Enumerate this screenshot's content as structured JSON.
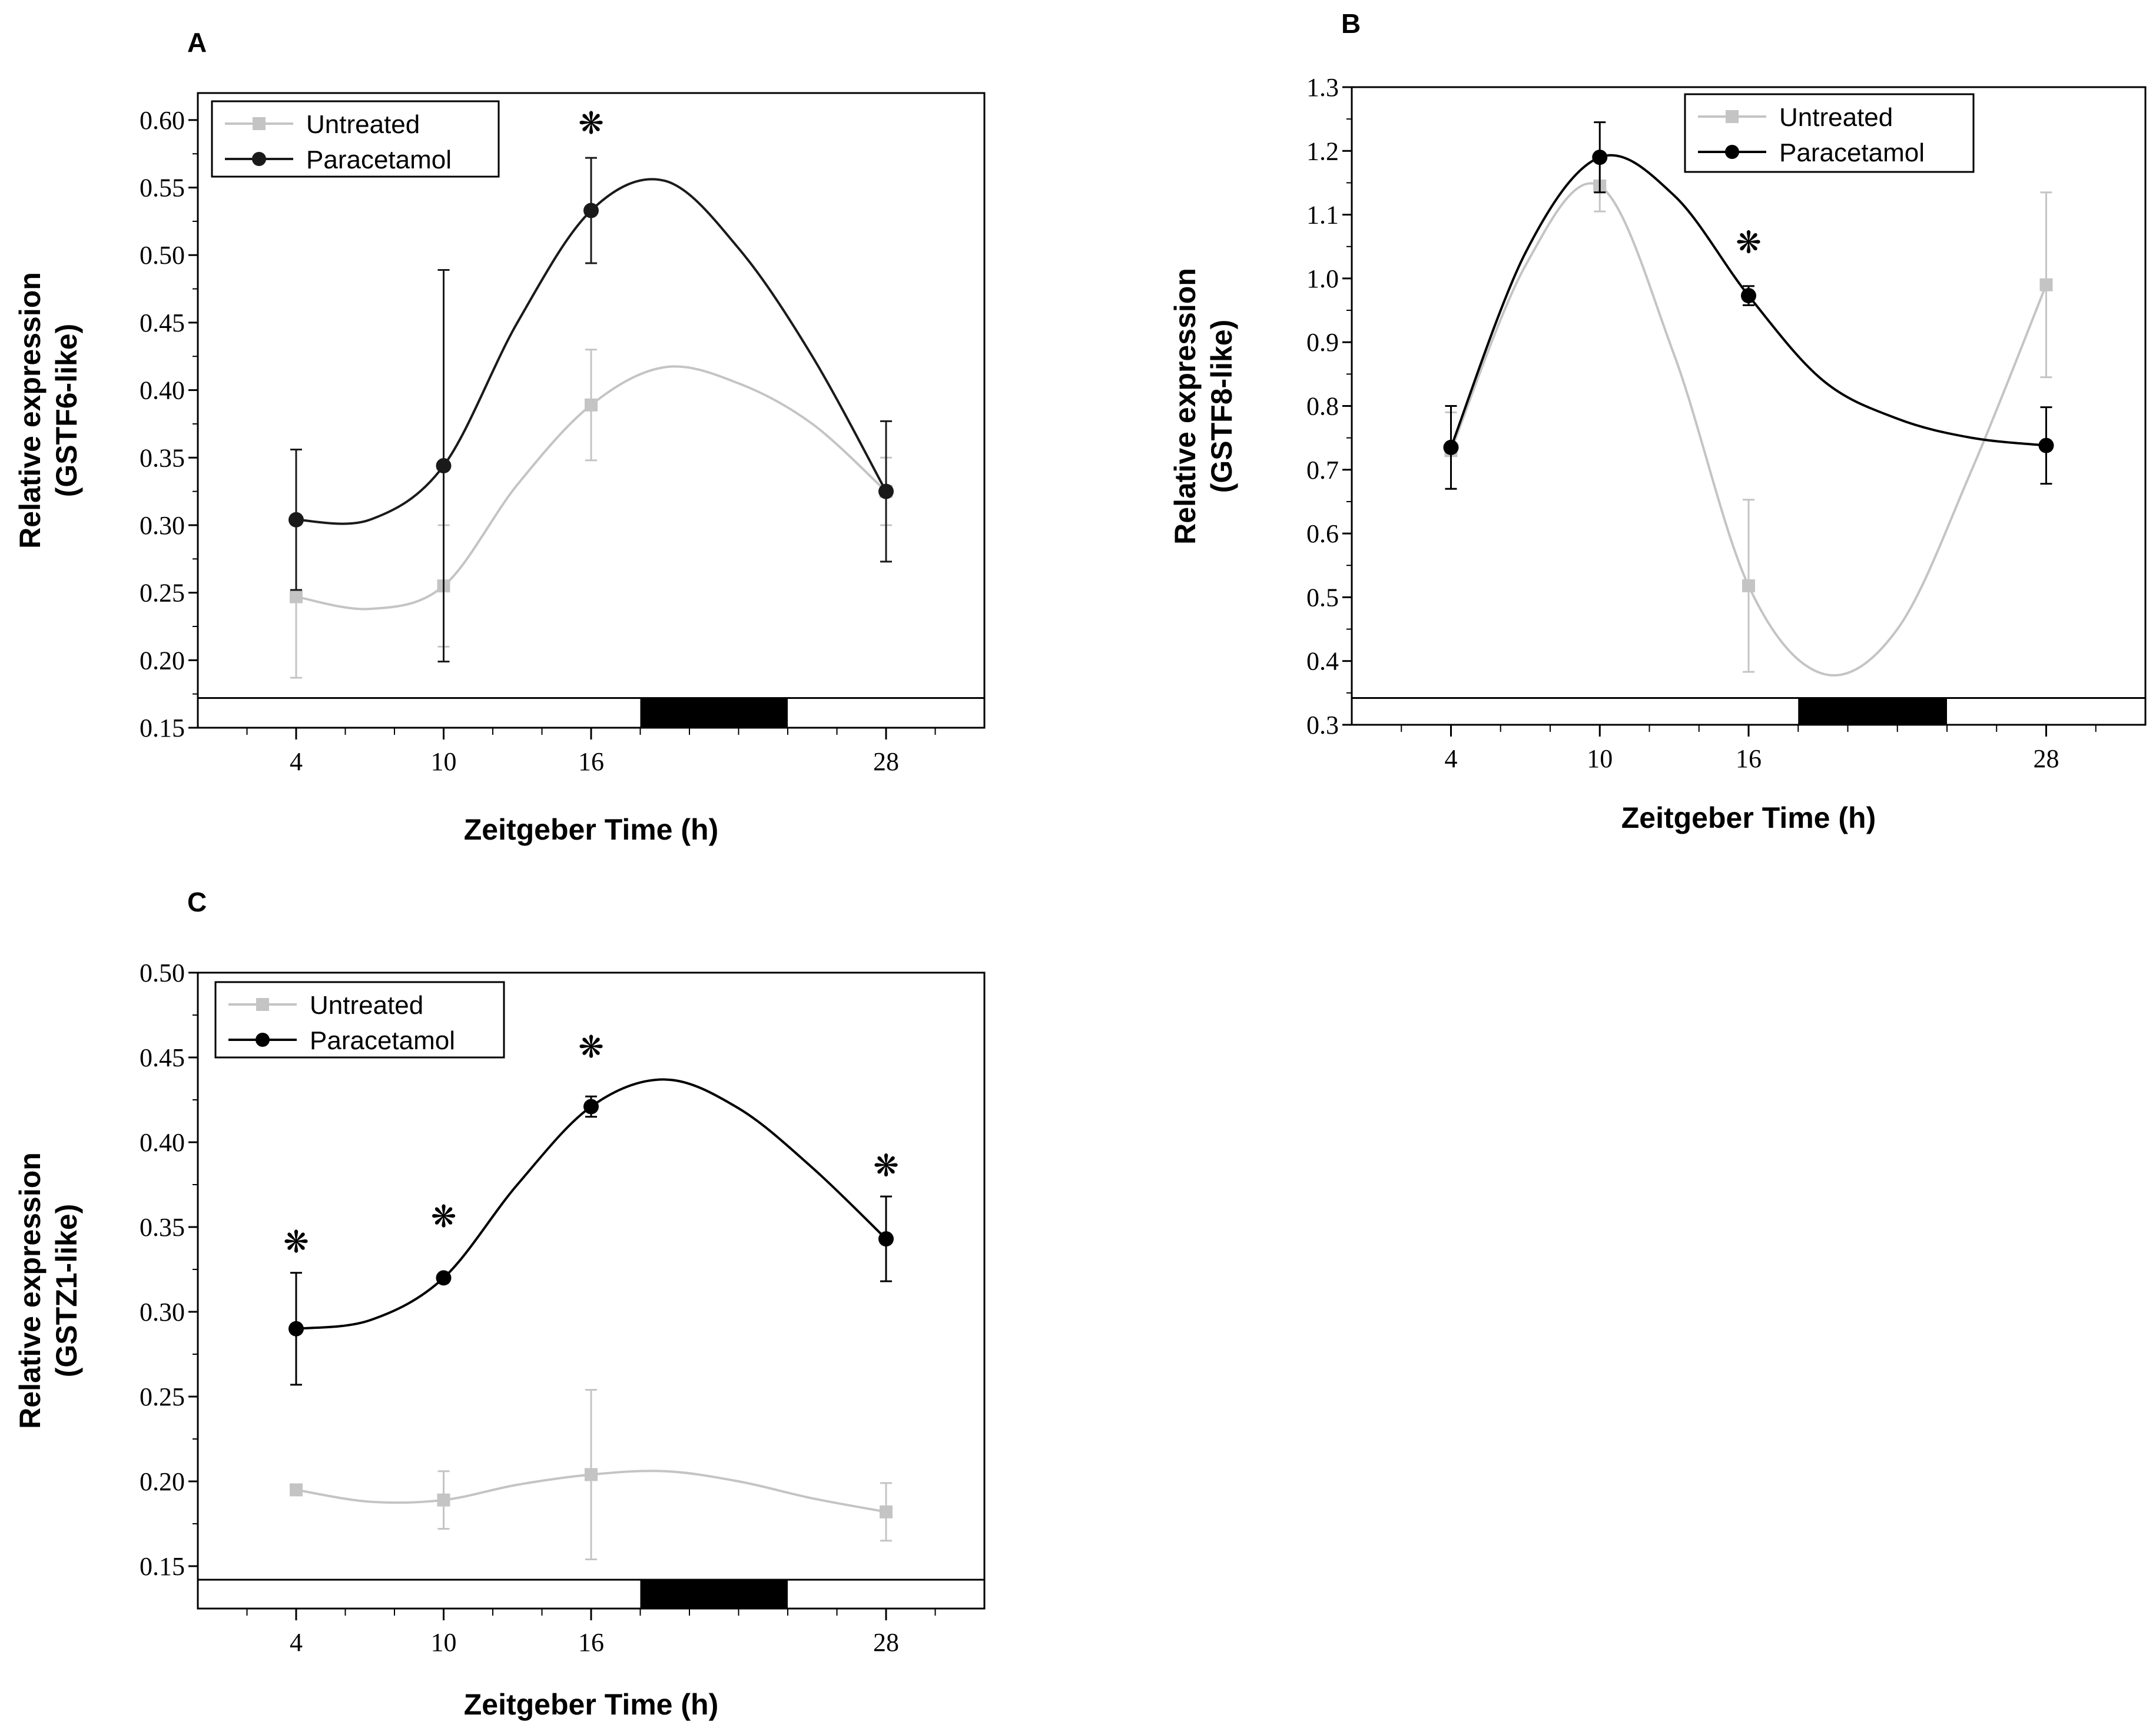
{
  "chart_data": [
    {
      "id": "A",
      "panel_label": "A",
      "type": "line",
      "xlabel": "Zeitgeber Time (h)",
      "ylabel_line1": "Relative expression",
      "ylabel_line2": "(GSTF6-like)",
      "xlim": [
        0,
        32
      ],
      "ylim": [
        0.15,
        0.62
      ],
      "xticks": [
        4,
        10,
        16,
        28
      ],
      "xticks_minor": [
        2,
        4,
        6,
        8,
        10,
        12,
        14,
        16,
        18,
        20,
        22,
        24,
        26,
        28,
        30
      ],
      "yticks": [
        0.15,
        0.2,
        0.25,
        0.3,
        0.35,
        0.4,
        0.45,
        0.5,
        0.55,
        0.6
      ],
      "ytick_labels": [
        "0.15",
        "0.20",
        "0.25",
        "0.30",
        "0.35",
        "0.40",
        "0.45",
        "0.50",
        "0.55",
        "0.60"
      ],
      "light_dark_bar": {
        "dark_start": 18,
        "dark_end": 24,
        "ylow": 0.15,
        "yhigh": 0.172
      },
      "series": [
        {
          "name": "Untreated",
          "color": "#c4c4c4",
          "marker": "square",
          "x": [
            4,
            10,
            16,
            28
          ],
          "y": [
            0.247,
            0.255,
            0.389,
            0.325
          ],
          "err": [
            0.06,
            0.045,
            0.041,
            0.025
          ],
          "curve": [
            [
              4,
              0.247
            ],
            [
              7,
              0.238
            ],
            [
              10,
              0.255
            ],
            [
              13,
              0.33
            ],
            [
              16,
              0.389
            ],
            [
              19,
              0.417
            ],
            [
              22,
              0.405
            ],
            [
              25,
              0.375
            ],
            [
              28,
              0.325
            ]
          ]
        },
        {
          "name": "Paracetamol",
          "color": "#1a1a1a",
          "marker": "circle",
          "x": [
            4,
            10,
            16,
            28
          ],
          "y": [
            0.304,
            0.344,
            0.533,
            0.325
          ],
          "err": [
            0.052,
            0.145,
            0.039,
            0.052
          ],
          "curve": [
            [
              4,
              0.304
            ],
            [
              7,
              0.304
            ],
            [
              10,
              0.344
            ],
            [
              13,
              0.45
            ],
            [
              16,
              0.533
            ],
            [
              19,
              0.555
            ],
            [
              22,
              0.505
            ],
            [
              25,
              0.425
            ],
            [
              28,
              0.325
            ]
          ]
        }
      ],
      "significance": [
        {
          "x": 16,
          "label": "❋",
          "y": 0.59
        }
      ],
      "legend": {
        "position": "top-left",
        "entries": [
          "Untreated",
          "Paracetamol"
        ]
      }
    },
    {
      "id": "B",
      "panel_label": "B",
      "type": "line",
      "xlabel": "Zeitgeber Time (h)",
      "ylabel_line1": "Relative expression",
      "ylabel_line2": "(GSTF8-like)",
      "xlim": [
        0,
        32
      ],
      "ylim": [
        0.3,
        1.3
      ],
      "xticks": [
        4,
        10,
        16,
        28
      ],
      "xticks_minor": [
        2,
        4,
        6,
        8,
        10,
        12,
        14,
        16,
        18,
        20,
        22,
        24,
        26,
        28,
        30
      ],
      "yticks": [
        0.3,
        0.4,
        0.5,
        0.6,
        0.7,
        0.8,
        0.9,
        1.0,
        1.1,
        1.2,
        1.3
      ],
      "ytick_labels": [
        "0.3",
        "0.4",
        "0.5",
        "0.6",
        "0.7",
        "0.8",
        "0.9",
        "1.0",
        "1.1",
        "1.2",
        "1.3"
      ],
      "light_dark_bar": {
        "dark_start": 18,
        "dark_end": 24,
        "ylow": 0.3,
        "yhigh": 0.342
      },
      "series": [
        {
          "name": "Untreated",
          "color": "#c4c4c4",
          "marker": "square",
          "x": [
            4,
            10,
            16,
            28
          ],
          "y": [
            0.73,
            1.145,
            0.518,
            0.99
          ],
          "err": [
            0.06,
            0.04,
            0.135,
            0.145
          ],
          "curve": [
            [
              4,
              0.73
            ],
            [
              7,
              1.02
            ],
            [
              10,
              1.145
            ],
            [
              13,
              0.88
            ],
            [
              16,
              0.518
            ],
            [
              19,
              0.38
            ],
            [
              22,
              0.45
            ],
            [
              25,
              0.7
            ],
            [
              28,
              0.99
            ]
          ]
        },
        {
          "name": "Paracetamol",
          "color": "#000000",
          "marker": "circle",
          "x": [
            4,
            10,
            16,
            28
          ],
          "y": [
            0.735,
            1.19,
            0.973,
            0.738
          ],
          "err": [
            0.065,
            0.055,
            0.015,
            0.06
          ],
          "curve": [
            [
              4,
              0.735
            ],
            [
              7,
              1.04
            ],
            [
              10,
              1.19
            ],
            [
              13,
              1.13
            ],
            [
              16,
              0.973
            ],
            [
              19,
              0.84
            ],
            [
              22,
              0.78
            ],
            [
              25,
              0.75
            ],
            [
              28,
              0.738
            ]
          ]
        }
      ],
      "significance": [
        {
          "x": 16,
          "label": "❋",
          "y": 1.04
        }
      ],
      "legend": {
        "position": "top-right",
        "entries": [
          "Untreated",
          "Paracetamol"
        ]
      }
    },
    {
      "id": "C",
      "panel_label": "C",
      "type": "line",
      "xlabel": "Zeitgeber Time (h)",
      "ylabel_line1": "Relative expression",
      "ylabel_line2": "(GSTZ1-like)",
      "xlim": [
        0,
        32
      ],
      "ylim": [
        0.125,
        0.5
      ],
      "xticks": [
        4,
        10,
        16,
        28
      ],
      "xticks_minor": [
        2,
        4,
        6,
        8,
        10,
        12,
        14,
        16,
        18,
        20,
        22,
        24,
        26,
        28,
        30
      ],
      "yticks": [
        0.15,
        0.2,
        0.25,
        0.3,
        0.35,
        0.4,
        0.45,
        0.5
      ],
      "ytick_labels": [
        "0.15",
        "0.20",
        "0.25",
        "0.30",
        "0.35",
        "0.40",
        "0.45",
        "0.50"
      ],
      "light_dark_bar": {
        "dark_start": 18,
        "dark_end": 24,
        "ylow": 0.125,
        "yhigh": 0.142
      },
      "series": [
        {
          "name": "Untreated",
          "color": "#c4c4c4",
          "marker": "square",
          "x": [
            4,
            10,
            16,
            28
          ],
          "y": [
            0.195,
            0.189,
            0.204,
            0.182
          ],
          "err": [
            0.0,
            0.017,
            0.05,
            0.017
          ],
          "curve": [
            [
              4,
              0.195
            ],
            [
              7,
              0.188
            ],
            [
              10,
              0.189
            ],
            [
              13,
              0.198
            ],
            [
              16,
              0.204
            ],
            [
              19,
              0.206
            ],
            [
              22,
              0.2
            ],
            [
              25,
              0.19
            ],
            [
              28,
              0.182
            ]
          ]
        },
        {
          "name": "Paracetamol",
          "color": "#000000",
          "marker": "circle",
          "x": [
            4,
            10,
            16,
            28
          ],
          "y": [
            0.29,
            0.32,
            0.421,
            0.343
          ],
          "err": [
            0.033,
            0.0,
            0.006,
            0.025
          ],
          "curve": [
            [
              4,
              0.29
            ],
            [
              7,
              0.295
            ],
            [
              10,
              0.32
            ],
            [
              13,
              0.375
            ],
            [
              16,
              0.421
            ],
            [
              19,
              0.437
            ],
            [
              22,
              0.42
            ],
            [
              25,
              0.385
            ],
            [
              28,
              0.343
            ]
          ]
        }
      ],
      "significance": [
        {
          "x": 4,
          "label": "❋",
          "y": 0.335
        },
        {
          "x": 10,
          "label": "❋",
          "y": 0.35
        },
        {
          "x": 16,
          "label": "❋",
          "y": 0.45
        },
        {
          "x": 28,
          "label": "❋",
          "y": 0.38
        }
      ],
      "legend": {
        "position": "top-left",
        "entries": [
          "Untreated",
          "Paracetamol"
        ]
      }
    }
  ]
}
